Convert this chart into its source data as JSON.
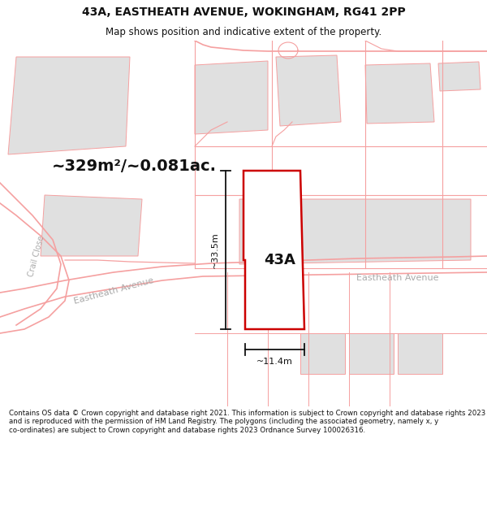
{
  "title_line1": "43A, EASTHEATH AVENUE, WOKINGHAM, RG41 2PP",
  "title_line2": "Map shows position and indicative extent of the property.",
  "area_text": "~329m²/~0.081ac.",
  "label_43A": "43A",
  "width_label": "~11.4m",
  "height_label": "~33.5m",
  "road_label_diag": "Eastheath Avenue",
  "road_label_horiz": "Eastheath Avenue",
  "road_label_crail": "Crail Close",
  "footer_text": "Contains OS data © Crown copyright and database right 2021. This information is subject to Crown copyright and database rights 2023 and is reproduced with the permission of HM Land Registry. The polygons (including the associated geometry, namely x, y co-ordinates) are subject to Crown copyright and database rights 2023 Ordnance Survey 100026316.",
  "bg_color": "#ffffff",
  "plot_fill": "#e0e0e0",
  "road_color": "#f5a0a0",
  "red_color": "#cc0000",
  "black": "#111111",
  "gray_label": "#aaaaaa",
  "title_font": 10,
  "subtitle_font": 8.5,
  "footer_font": 6.2,
  "fig_width": 6.0,
  "fig_height": 6.25,
  "dpi": 100
}
